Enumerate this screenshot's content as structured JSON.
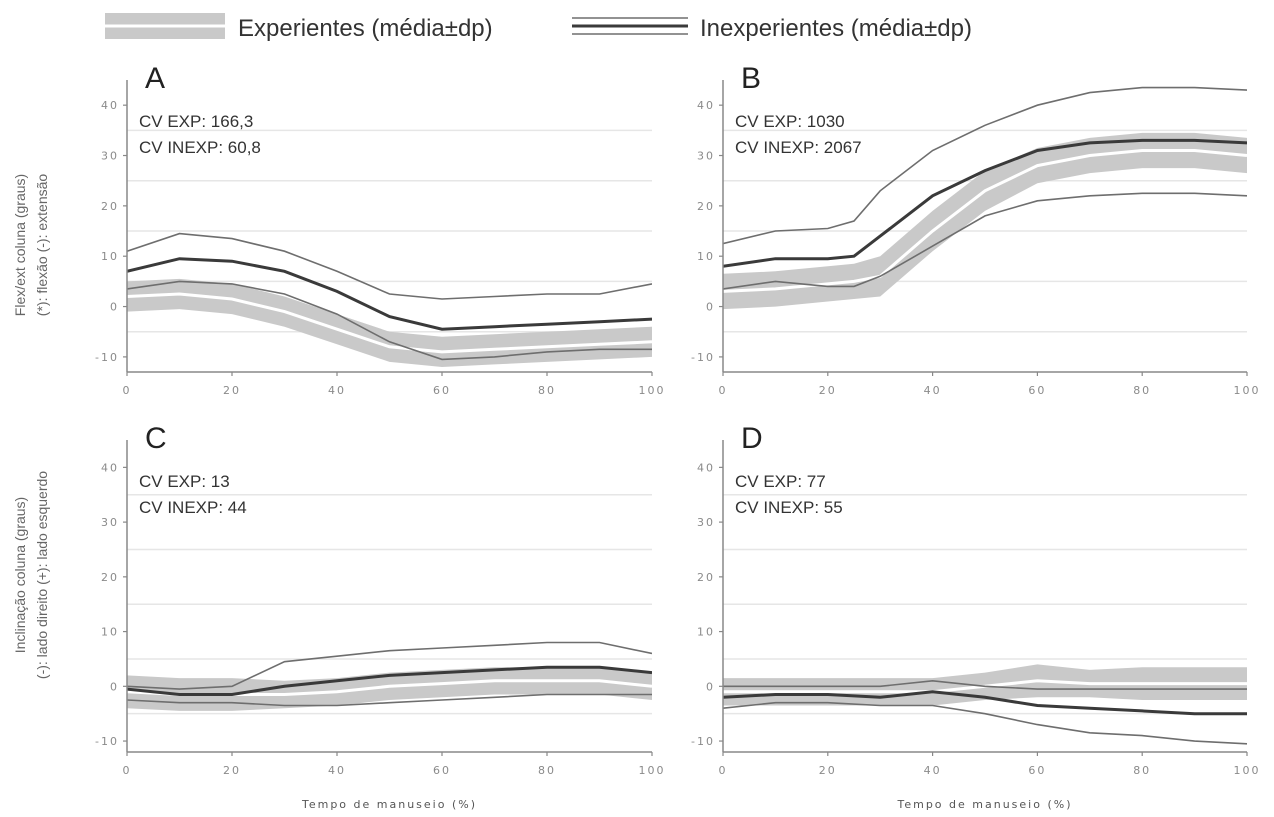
{
  "legend": {
    "experienced": "Experientes (média±dp)",
    "inexperienced": "Inexperientes (média±dp)"
  },
  "colors": {
    "band": "#c9c9c9",
    "exp_mean": "#ffffff",
    "inexp_mean": "#3a3a3a",
    "inexp_sd": "#6e6e6e",
    "grid": "#e6e6e6",
    "axis": "#888888"
  },
  "ylabels": {
    "top_line1": "Flex/ext coluna (graus)",
    "top_line2": "(*): flexão (-): extensão",
    "bottom_line1": "Inclinação coluna (graus)",
    "bottom_line2": "(-): lado direito (+): lado esquerdo"
  },
  "chart_data": [
    {
      "type": "line",
      "panel": "A",
      "cv_exp": "CV EXP: 166,3",
      "cv_inexp": "CV INEXP: 60,8",
      "xlabel": "",
      "xlim": [
        0,
        100
      ],
      "ylim": [
        -13,
        45
      ],
      "xticks": [
        0,
        20,
        40,
        60,
        80,
        100
      ],
      "yticks": [
        -10,
        0,
        10,
        20,
        30,
        40
      ],
      "grid": [
        -5,
        5,
        15,
        25,
        35
      ],
      "x": [
        0,
        10,
        20,
        30,
        40,
        50,
        60,
        70,
        80,
        90,
        100
      ],
      "series": [
        {
          "role": "exp",
          "mean": [
            2,
            2.5,
            1.5,
            -1,
            -4.5,
            -8,
            -9,
            -8.5,
            -8,
            -7.5,
            -7
          ],
          "sd": [
            3,
            3,
            3,
            3,
            3,
            3,
            3,
            3,
            3,
            3,
            3
          ]
        },
        {
          "role": "inexp",
          "mean": [
            7,
            9.5,
            9,
            7,
            3,
            -2,
            -4.5,
            -4,
            -3.5,
            -3,
            -2.5
          ],
          "upper": [
            11,
            14.5,
            13.5,
            11,
            7,
            2.5,
            1.5,
            2,
            2.5,
            2.5,
            4.5
          ],
          "lower": [
            3.5,
            5,
            4.5,
            2.5,
            -1.5,
            -7,
            -10.5,
            -10,
            -9,
            -8.5,
            -8.5
          ]
        }
      ]
    },
    {
      "type": "line",
      "panel": "B",
      "cv_exp": "CV EXP: 1030",
      "cv_inexp": "CV INEXP: 2067",
      "xlabel": "",
      "xlim": [
        0,
        100
      ],
      "ylim": [
        -13,
        45
      ],
      "xticks": [
        0,
        20,
        40,
        60,
        80,
        100
      ],
      "yticks": [
        -10,
        0,
        10,
        20,
        30,
        40
      ],
      "grid": [
        -5,
        5,
        15,
        25,
        35
      ],
      "x": [
        0,
        10,
        20,
        25,
        30,
        40,
        50,
        60,
        70,
        80,
        90,
        100
      ],
      "series": [
        {
          "role": "exp",
          "mean": [
            3,
            3.5,
            4.5,
            5,
            6,
            15,
            23,
            28,
            30,
            31,
            31,
            30
          ],
          "sd": [
            3.5,
            3.5,
            3.5,
            3.5,
            4,
            4,
            4,
            3.5,
            3.5,
            3.5,
            3.5,
            3.5
          ]
        },
        {
          "role": "inexp",
          "mean": [
            8,
            9.5,
            9.5,
            10,
            14,
            22,
            27,
            31,
            32.5,
            33,
            33,
            32.5
          ],
          "upper": [
            12.5,
            15,
            15.5,
            17,
            23,
            31,
            36,
            40,
            42.5,
            43.5,
            43.5,
            43
          ],
          "lower": [
            3.5,
            5,
            4,
            4,
            6,
            12,
            18,
            21,
            22,
            22.5,
            22.5,
            22
          ]
        }
      ]
    },
    {
      "type": "line",
      "panel": "C",
      "cv_exp": "CV EXP: 13",
      "cv_inexp": "CV INEXP: 44",
      "xlabel": "Tempo de manuseio (%)",
      "xlim": [
        0,
        100
      ],
      "ylim": [
        -12,
        45
      ],
      "xticks": [
        0,
        20,
        40,
        60,
        80,
        100
      ],
      "yticks": [
        -10,
        0,
        10,
        20,
        30,
        40
      ],
      "grid": [
        -5,
        5,
        15,
        25,
        35
      ],
      "x": [
        0,
        10,
        20,
        30,
        40,
        50,
        60,
        70,
        80,
        90,
        100
      ],
      "series": [
        {
          "role": "exp",
          "mean": [
            -1,
            -1.5,
            -1.5,
            -1.5,
            -1,
            0,
            0.5,
            1,
            1,
            1,
            0
          ],
          "sd": [
            3,
            3,
            3,
            2.5,
            2.5,
            2.5,
            2.5,
            2.5,
            2.5,
            2.5,
            2.5
          ]
        },
        {
          "role": "inexp",
          "mean": [
            -0.5,
            -1.5,
            -1.5,
            0,
            1,
            2,
            2.5,
            3,
            3.5,
            3.5,
            2.5
          ],
          "upper": [
            0,
            -0.5,
            0,
            4.5,
            5.5,
            6.5,
            7,
            7.5,
            8,
            8,
            6
          ],
          "lower": [
            -2.5,
            -3,
            -3,
            -3.5,
            -3.5,
            -3,
            -2.5,
            -2,
            -1.5,
            -1.5,
            -1.5
          ]
        }
      ]
    },
    {
      "type": "line",
      "panel": "D",
      "cv_exp": "CV EXP: 77",
      "cv_inexp": "CV INEXP: 55",
      "xlabel": "Tempo de manuseio (%)",
      "xlim": [
        0,
        100
      ],
      "ylim": [
        -12,
        45
      ],
      "xticks": [
        0,
        20,
        40,
        60,
        80,
        100
      ],
      "yticks": [
        -10,
        0,
        10,
        20,
        30,
        40
      ],
      "grid": [
        -5,
        5,
        15,
        25,
        35
      ],
      "x": [
        0,
        10,
        20,
        30,
        40,
        50,
        60,
        70,
        80,
        90,
        100
      ],
      "series": [
        {
          "role": "exp",
          "mean": [
            -1,
            -1,
            -1,
            -1,
            -1,
            0,
            1,
            0.5,
            0.5,
            0.5,
            0.5
          ],
          "sd": [
            2.5,
            2.5,
            2.5,
            2.5,
            2.5,
            2.5,
            3,
            2.5,
            3,
            3,
            3
          ]
        },
        {
          "role": "inexp",
          "mean": [
            -2,
            -1.5,
            -1.5,
            -2,
            -1,
            -2,
            -3.5,
            -4,
            -4.5,
            -5,
            -5
          ],
          "upper": [
            0,
            0,
            0,
            0,
            1,
            0,
            -0.5,
            -0.5,
            -0.5,
            -0.5,
            -0.5
          ],
          "lower": [
            -4,
            -3,
            -3,
            -3.5,
            -3.5,
            -5,
            -7,
            -8.5,
            -9,
            -10,
            -10.5
          ]
        }
      ]
    }
  ]
}
